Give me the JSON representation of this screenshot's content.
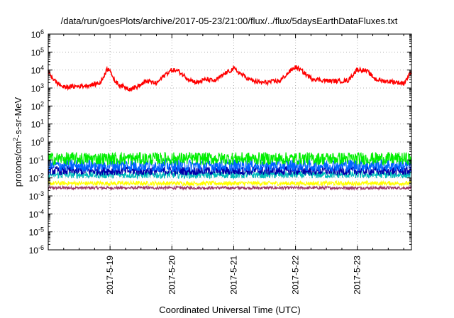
{
  "chart_data": {
    "type": "line",
    "title": "/data/run/goesPlots/archive/2017-05-23/21:00/flux/../flux/5daysEarthDataFluxes.txt",
    "xlabel": "Coordinated Universal Time (UTC)",
    "ylabel": "protons/cm2-s-sr-MeV",
    "ylabel_parts": {
      "pre": "protons/cm",
      "sup": "2",
      "post": "-s-sr-MeV"
    },
    "y_scale": "log",
    "ylim": [
      1e-06,
      1000000.0
    ],
    "y_ticks": [
      {
        "base": "10",
        "exp": "6"
      },
      {
        "base": "10",
        "exp": "5"
      },
      {
        "base": "10",
        "exp": "4"
      },
      {
        "base": "10",
        "exp": "3"
      },
      {
        "base": "10",
        "exp": "2"
      },
      {
        "base": "10",
        "exp": "1"
      },
      {
        "base": "10",
        "exp": "0"
      },
      {
        "base": "10",
        "exp": "-1"
      },
      {
        "base": "10",
        "exp": "-2"
      },
      {
        "base": "10",
        "exp": "-3"
      },
      {
        "base": "10",
        "exp": "-4"
      },
      {
        "base": "10",
        "exp": "-5"
      },
      {
        "base": "10",
        "exp": "-6"
      }
    ],
    "xlim_days": [
      "2017-05-18 00:00",
      "2017-05-23 21:00"
    ],
    "x_ticks": [
      "2017-5-19",
      "2017-5-20",
      "2017-5-21",
      "2017-5-22",
      "2017-5-23"
    ],
    "grid": true,
    "legend": "none",
    "series": [
      {
        "color": "#ff0000",
        "x_days": [
          0.0,
          0.12,
          0.25,
          0.4,
          0.55,
          0.7,
          0.85,
          0.95,
          1.0,
          1.05,
          1.15,
          1.3,
          1.45,
          1.6,
          1.75,
          1.9,
          2.0,
          2.1,
          2.25,
          2.4,
          2.55,
          2.7,
          2.85,
          3.0,
          3.15,
          3.3,
          3.45,
          3.6,
          3.75,
          3.9,
          4.0,
          4.1,
          4.25,
          4.4,
          4.55,
          4.7,
          4.85,
          5.0,
          5.15,
          5.3,
          5.45,
          5.6,
          5.75,
          5.875
        ],
        "values": [
          8000,
          2200,
          1100,
          1200,
          1300,
          1500,
          2000,
          11000,
          12000,
          3000,
          1500,
          900,
          1200,
          2500,
          1800,
          6000,
          10000,
          9000,
          3500,
          2000,
          3000,
          2500,
          6000,
          12000,
          5000,
          2500,
          2000,
          2200,
          2500,
          8000,
          15000,
          9000,
          3500,
          2800,
          2500,
          2400,
          2600,
          11000,
          9000,
          3000,
          2400,
          2200,
          1800,
          8000
        ]
      },
      {
        "color": "#00ee00",
        "x_days": [
          0.0,
          5.875
        ],
        "values": [
          0.12,
          0.12
        ]
      },
      {
        "color": "#0066ff",
        "x_days": [
          0.0,
          5.875
        ],
        "values": [
          0.05,
          0.05
        ]
      },
      {
        "color": "#0000aa",
        "x_days": [
          0.0,
          5.875
        ],
        "values": [
          0.025,
          0.025
        ]
      },
      {
        "color": "#00bbbb",
        "x_days": [
          0.0,
          5.875
        ],
        "values": [
          0.015,
          0.015
        ]
      },
      {
        "color": "#ffff00",
        "x_days": [
          0.0,
          5.875
        ],
        "values": [
          0.005,
          0.005
        ]
      },
      {
        "color": "#993366",
        "x_days": [
          0.0,
          5.875
        ],
        "values": [
          0.0028,
          0.0028
        ]
      }
    ]
  }
}
